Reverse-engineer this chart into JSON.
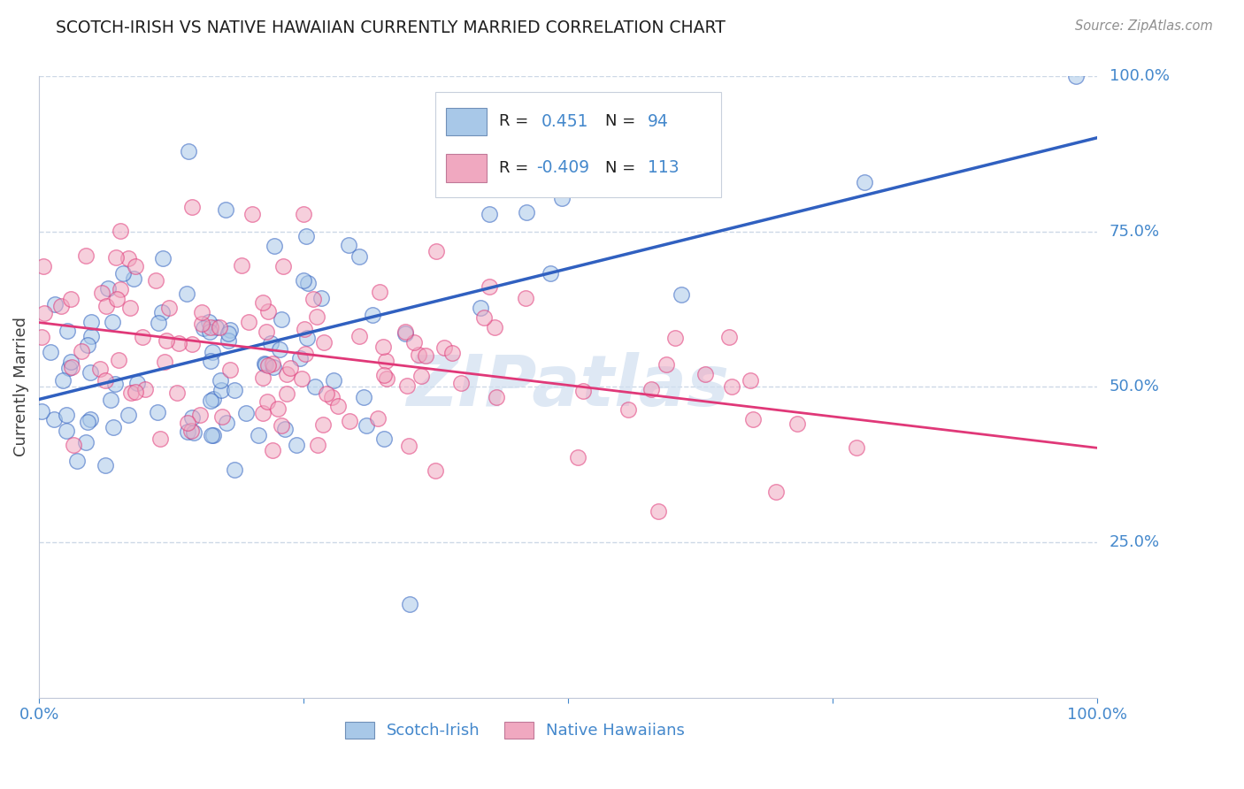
{
  "title": "SCOTCH-IRISH VS NATIVE HAWAIIAN CURRENTLY MARRIED CORRELATION CHART",
  "source": "Source: ZipAtlas.com",
  "ylabel": "Currently Married",
  "ytick_labels": [
    "25.0%",
    "50.0%",
    "75.0%",
    "100.0%"
  ],
  "ytick_positions": [
    0.25,
    0.5,
    0.75,
    1.0
  ],
  "blue_R": 0.451,
  "blue_N": 94,
  "pink_R": -0.409,
  "pink_N": 113,
  "blue_color": "#a8c8e8",
  "pink_color": "#f0a8c0",
  "blue_line_color": "#3060c0",
  "pink_line_color": "#e03878",
  "watermark": "ZIPatlas",
  "watermark_color": "#d0dff0",
  "background_color": "#ffffff",
  "grid_color": "#c8d4e4",
  "title_color": "#202020",
  "axis_label_color": "#4488cc",
  "legend_text_color": "#4488cc",
  "blue_seed": 12,
  "pink_seed": 77,
  "blue_n": 94,
  "pink_n": 113,
  "figsize": [
    14.06,
    8.92
  ],
  "dpi": 100
}
